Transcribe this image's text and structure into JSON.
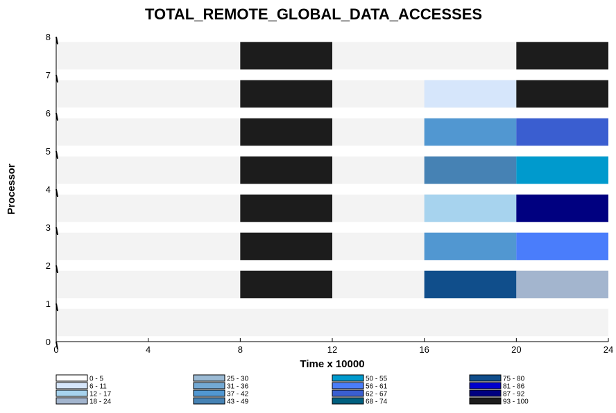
{
  "chart_data": {
    "type": "heatmap",
    "title": "TOTAL_REMOTE_GLOBAL_DATA_ACCESSES",
    "xlabel": "Time x 10000",
    "ylabel": "Processor",
    "xlim": [
      0,
      24
    ],
    "ylim": [
      0,
      8
    ],
    "x_ticks": [
      "0",
      "4",
      "8",
      "12",
      "16",
      "20",
      "24"
    ],
    "y_ticks": [
      "0",
      "1",
      "2",
      "3",
      "4",
      "5",
      "6",
      "7",
      "8"
    ],
    "time_bins": [
      [
        0,
        8
      ],
      [
        8,
        12
      ],
      [
        12,
        16
      ],
      [
        16,
        20
      ],
      [
        20,
        24
      ]
    ],
    "legend": [
      {
        "range": "0 - 5",
        "color": "#ffffff"
      },
      {
        "range": "6 - 11",
        "color": "#d6e6fb"
      },
      {
        "range": "12 - 17",
        "color": "#a7d3ee"
      },
      {
        "range": "18 - 24",
        "color": "#a3b5ce"
      },
      {
        "range": "25 - 30",
        "color": "#9bbad4"
      },
      {
        "range": "31 - 36",
        "color": "#73a9d4"
      },
      {
        "range": "37 - 42",
        "color": "#5197d1"
      },
      {
        "range": "43 - 49",
        "color": "#4682b4"
      },
      {
        "range": "50 - 55",
        "color": "#009acd"
      },
      {
        "range": "56 - 61",
        "color": "#4a7dfb"
      },
      {
        "range": "62 - 67",
        "color": "#3a5ed0"
      },
      {
        "range": "68 - 74",
        "color": "#005f7f"
      },
      {
        "range": "75 - 80",
        "color": "#104e8b"
      },
      {
        "range": "81 - 86",
        "color": "#0000cd"
      },
      {
        "range": "87 - 92",
        "color": "#000080"
      },
      {
        "range": "93 - 100",
        "color": "#1c1c1c"
      }
    ],
    "background_color": "#f3f3f3",
    "processors": [
      {
        "processor": 0,
        "cells": [
          null,
          null,
          null,
          null,
          null
        ]
      },
      {
        "processor": 1,
        "cells": [
          null,
          "93 - 100",
          null,
          "75 - 80",
          "18 - 24"
        ]
      },
      {
        "processor": 2,
        "cells": [
          null,
          "93 - 100",
          null,
          "37 - 42",
          "56 - 61"
        ]
      },
      {
        "processor": 3,
        "cells": [
          null,
          "93 - 100",
          null,
          "12 - 17",
          "87 - 92"
        ]
      },
      {
        "processor": 4,
        "cells": [
          null,
          "93 - 100",
          null,
          "43 - 49",
          "50 - 55"
        ]
      },
      {
        "processor": 5,
        "cells": [
          null,
          "93 - 100",
          null,
          "37 - 42",
          "62 - 67"
        ]
      },
      {
        "processor": 6,
        "cells": [
          null,
          "93 - 100",
          null,
          "6 - 11",
          "93 - 100"
        ]
      },
      {
        "processor": 7,
        "cells": [
          null,
          "93 - 100",
          null,
          null,
          "93 - 100"
        ]
      }
    ]
  }
}
